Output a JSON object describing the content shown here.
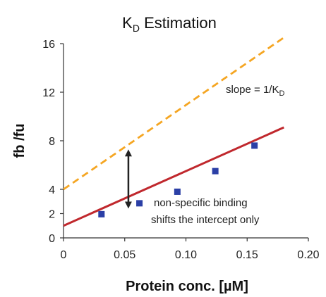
{
  "chart_data": {
    "type": "line",
    "title": {
      "main": "K",
      "sub": "D",
      "rest": " Estimation"
    },
    "xlabel": "Protein conc. [µM]",
    "ylabel": "fb /fu",
    "xlim": [
      0,
      0.2
    ],
    "ylim": [
      0,
      16
    ],
    "xticks": [
      "0",
      "0.05",
      "0.10",
      "0.15",
      "0.20"
    ],
    "yticks": [
      "0",
      "2",
      "4",
      "8",
      "12",
      "16"
    ],
    "grid": false,
    "series": [
      {
        "style": "solid",
        "color": "#c0282d",
        "x": [
          0,
          0.18
        ],
        "y": [
          1.0,
          9.1
        ]
      },
      {
        "style": "dashed",
        "color": "#f5a623",
        "x": [
          0,
          0.18
        ],
        "y": [
          4.0,
          16.5
        ]
      }
    ],
    "points": {
      "color": "#2b3fa6",
      "x": [
        0.031,
        0.062,
        0.093,
        0.124,
        0.156
      ],
      "y": [
        1.95,
        2.85,
        3.8,
        5.5,
        7.6
      ]
    },
    "arrow": {
      "x": 0.053,
      "y_from": 2.7,
      "y_to": 7.0
    },
    "annotations": {
      "slope": {
        "main": "slope = 1/K",
        "sub": "D"
      },
      "note_line1": "non-specific binding",
      "note_line2": "shifts the intercept only"
    }
  }
}
